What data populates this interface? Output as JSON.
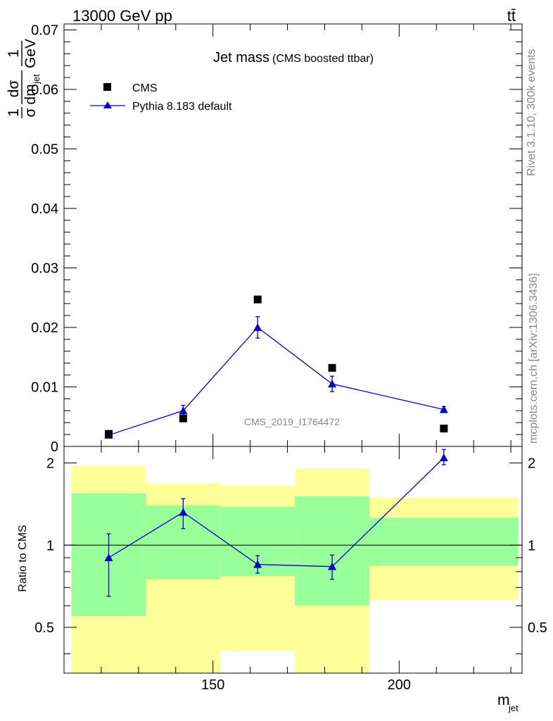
{
  "header": {
    "energy_label": "13000 GeV pp",
    "process_label": "tt̄"
  },
  "title": {
    "main": "Jet mass",
    "sub": "(CMS boosted ttbar)"
  },
  "watermark": "CMS_2019_I1764472",
  "side_text": {
    "rivet": "Rivet 3.1.10,  300k events",
    "source": "mcplots.cern.ch [arXiv:1306.3436]"
  },
  "chart_data": [
    {
      "type": "scatter",
      "panel": "main",
      "ylabel_parts": {
        "frac1": "1",
        "sigma": "σ",
        "dsigma": "dσ",
        "dm": "dm",
        "jet": "jet",
        "frac2": "1",
        "gev": "GeV"
      },
      "xlim": [
        110,
        233
      ],
      "ylim": [
        0,
        0.071
      ],
      "yticks": [
        0,
        0.01,
        0.02,
        0.03,
        0.04,
        0.05,
        0.06,
        0.07
      ],
      "ytick_labels": [
        "0",
        "0.01",
        "0.02",
        "0.03",
        "0.04",
        "0.05",
        "0.06",
        "0.07"
      ],
      "legend_position": "top-left",
      "series": [
        {
          "name": "CMS",
          "marker": "square",
          "color": "#000000",
          "x": [
            122,
            142,
            162,
            182,
            212
          ],
          "y": [
            0.0021,
            0.0047,
            0.0247,
            0.0132,
            0.003
          ]
        },
        {
          "name": "Pythia 8.183 default",
          "marker": "triangle",
          "color": "#0000cc",
          "x": [
            122,
            142,
            162,
            182,
            212
          ],
          "y": [
            0.0019,
            0.006,
            0.02,
            0.0105,
            0.0062
          ],
          "yerr": [
            0.0003,
            0.0009,
            0.0018,
            0.0013,
            0.0005
          ]
        }
      ]
    },
    {
      "type": "line",
      "panel": "ratio",
      "ylabel": "Ratio to CMS",
      "xlabel": "m",
      "xlabel_sub": "jet",
      "xlim": [
        110,
        233
      ],
      "ylim": [
        0.34,
        2.3
      ],
      "yticks": [
        0.5,
        1,
        2
      ],
      "ytick_labels": [
        "0.5",
        "1",
        "2"
      ],
      "xticks": [
        150,
        200
      ],
      "xtick_labels": [
        "150",
        "200"
      ],
      "bins": [
        {
          "x0": 112,
          "x1": 132,
          "stat": [
            0.55,
            1.55
          ],
          "total": [
            0.3,
            1.95
          ]
        },
        {
          "x0": 132,
          "x1": 152,
          "stat": [
            0.75,
            1.4
          ],
          "total": [
            0.3,
            1.68
          ]
        },
        {
          "x0": 152,
          "x1": 172,
          "stat": [
            0.77,
            1.38
          ],
          "total": [
            0.41,
            1.65
          ]
        },
        {
          "x0": 172,
          "x1": 192,
          "stat": [
            0.6,
            1.51
          ],
          "total": [
            0.3,
            1.9
          ]
        },
        {
          "x0": 192,
          "x1": 232,
          "stat": [
            0.84,
            1.26
          ],
          "total": [
            0.63,
            1.49
          ]
        }
      ],
      "band_colors": {
        "total": "#ffff99",
        "stat": "#99ff99"
      },
      "series": [
        {
          "name": "Pythia 8.183 default",
          "color": "#0000cc",
          "x": [
            122,
            142,
            162,
            182,
            212
          ],
          "y": [
            0.9,
            1.32,
            0.85,
            0.835,
            2.09
          ],
          "yerr_low": [
            0.25,
            0.17,
            0.06,
            0.085,
            0.12
          ],
          "yerr_high": [
            0.2,
            0.16,
            0.065,
            0.085,
            0.15
          ]
        }
      ]
    }
  ]
}
